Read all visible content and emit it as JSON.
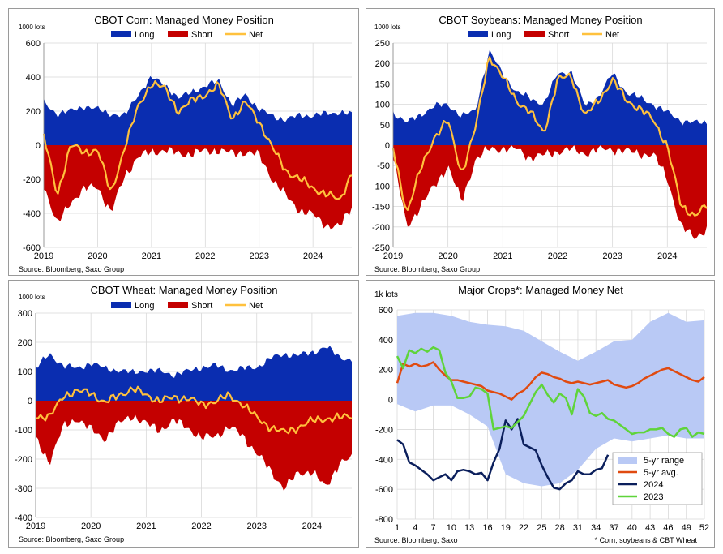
{
  "colors": {
    "long": "#0a2db0",
    "short": "#c40000",
    "net": "#ffc13d",
    "range": "#b9c9f5",
    "avg": "#e04a10",
    "y2024": "#0b1f5c",
    "y2023": "#5fd43a"
  },
  "source": "Source: Bloomberg, Saxo Group",
  "source_small": "Source: Bloomberg, Saxo",
  "footnote": "* Corn, soybeans & CBT Wheat",
  "chart_data": [
    {
      "type": "area",
      "title": "CBOT  Corn: Managed Money Position",
      "ylabel": "1000 lots",
      "ylim": [
        -600,
        600
      ],
      "yticks": [
        600,
        400,
        200,
        0,
        -200,
        -400,
        -600
      ],
      "xlim": [
        2019,
        2024.72
      ],
      "xticks": [
        "2019",
        "2020",
        "2021",
        "2022",
        "2023",
        "2024"
      ],
      "legend": [
        "Long",
        "Short",
        "Net"
      ],
      "legend_position": "top",
      "grid": true,
      "series": [
        {
          "name": "Long",
          "x": [
            2019.0,
            2019.25,
            2019.5,
            2019.75,
            2020.0,
            2020.25,
            2020.5,
            2020.75,
            2021.0,
            2021.25,
            2021.5,
            2021.75,
            2022.0,
            2022.25,
            2022.5,
            2022.75,
            2023.0,
            2023.25,
            2023.5,
            2023.75,
            2024.0,
            2024.25,
            2024.5,
            2024.72
          ],
          "values": [
            250,
            185,
            200,
            230,
            210,
            185,
            170,
            300,
            395,
            360,
            270,
            320,
            340,
            385,
            230,
            300,
            210,
            170,
            150,
            175,
            175,
            185,
            195,
            180
          ]
        },
        {
          "name": "Short",
          "x": [
            2019.0,
            2019.25,
            2019.5,
            2019.75,
            2020.0,
            2020.25,
            2020.5,
            2020.75,
            2021.0,
            2021.25,
            2021.5,
            2021.75,
            2022.0,
            2022.25,
            2022.5,
            2022.75,
            2023.0,
            2023.25,
            2023.5,
            2023.75,
            2024.0,
            2024.25,
            2024.5,
            2024.72
          ],
          "values": [
            -230,
            -470,
            -330,
            -260,
            -240,
            -400,
            -180,
            -70,
            -40,
            -30,
            -50,
            -50,
            -35,
            -30,
            -50,
            -40,
            -60,
            -200,
            -300,
            -380,
            -410,
            -470,
            -480,
            -360
          ]
        },
        {
          "name": "Net",
          "x": [
            2019.0,
            2019.25,
            2019.5,
            2019.75,
            2020.0,
            2020.25,
            2020.5,
            2020.75,
            2021.0,
            2021.25,
            2021.5,
            2021.75,
            2022.0,
            2022.25,
            2022.5,
            2022.75,
            2023.0,
            2023.25,
            2023.5,
            2023.75,
            2024.0,
            2024.25,
            2024.5,
            2024.72
          ],
          "values": [
            60,
            -300,
            10,
            -50,
            -20,
            -290,
            -10,
            220,
            370,
            330,
            200,
            260,
            300,
            350,
            160,
            250,
            140,
            -20,
            -150,
            -200,
            -250,
            -290,
            -320,
            -160
          ]
        }
      ]
    },
    {
      "type": "area",
      "title": "CBOT  Soybeans: Managed Money Position",
      "ylabel": "1000 lots",
      "ylim": [
        -250,
        250
      ],
      "yticks": [
        250,
        200,
        150,
        100,
        50,
        0,
        -50,
        -100,
        -150,
        -200,
        -250
      ],
      "xlim": [
        2019,
        2024.72
      ],
      "xticks": [
        "2019",
        "2020",
        "2021",
        "2022",
        "2023",
        "2024"
      ],
      "legend": [
        "Long",
        "Short",
        "Net"
      ],
      "legend_position": "top",
      "grid": true,
      "series": [
        {
          "name": "Long",
          "x": [
            2019.0,
            2019.25,
            2019.5,
            2019.75,
            2020.0,
            2020.25,
            2020.5,
            2020.75,
            2021.0,
            2021.25,
            2021.5,
            2021.75,
            2022.0,
            2022.25,
            2022.5,
            2022.75,
            2023.0,
            2023.25,
            2023.5,
            2023.75,
            2024.0,
            2024.25,
            2024.5,
            2024.72
          ],
          "values": [
            80,
            55,
            75,
            95,
            100,
            70,
            85,
            230,
            175,
            130,
            115,
            100,
            175,
            180,
            95,
            120,
            175,
            130,
            115,
            100,
            80,
            60,
            55,
            55
          ]
        },
        {
          "name": "Short",
          "x": [
            2019.0,
            2019.25,
            2019.5,
            2019.75,
            2020.0,
            2020.25,
            2020.5,
            2020.75,
            2021.0,
            2021.25,
            2021.5,
            2021.75,
            2022.0,
            2022.25,
            2022.5,
            2022.75,
            2023.0,
            2023.25,
            2023.5,
            2023.75,
            2024.0,
            2024.25,
            2024.5,
            2024.72
          ],
          "values": [
            -30,
            -200,
            -150,
            -100,
            -50,
            -140,
            -35,
            -10,
            -8,
            -10,
            -30,
            -25,
            -15,
            -10,
            -20,
            -10,
            -10,
            -15,
            -20,
            -25,
            -80,
            -200,
            -225,
            -205
          ]
        },
        {
          "name": "Net",
          "x": [
            2019.0,
            2019.25,
            2019.5,
            2019.75,
            2020.0,
            2020.25,
            2020.5,
            2020.75,
            2021.0,
            2021.25,
            2021.5,
            2021.75,
            2022.0,
            2022.25,
            2022.5,
            2022.75,
            2023.0,
            2023.25,
            2023.5,
            2023.75,
            2024.0,
            2024.25,
            2024.5,
            2024.72
          ],
          "values": [
            -10,
            -165,
            -60,
            20,
            60,
            -70,
            40,
            220,
            165,
            110,
            80,
            30,
            160,
            170,
            70,
            110,
            160,
            110,
            90,
            60,
            0,
            -150,
            -170,
            -150
          ]
        }
      ]
    },
    {
      "type": "area",
      "title": "CBOT  Wheat: Managed Money Position",
      "ylabel": "1000 lots",
      "ylim": [
        -400,
        300
      ],
      "yticks": [
        300,
        200,
        100,
        0,
        -100,
        -200,
        -300,
        -400
      ],
      "xlim": [
        2019,
        2024.72
      ],
      "xticks": [
        "2019",
        "2020",
        "2021",
        "2022",
        "2023",
        "2024"
      ],
      "legend": [
        "Long",
        "Short",
        "Net"
      ],
      "legend_position": "top",
      "grid": true,
      "series": [
        {
          "name": "Long",
          "x": [
            2019.0,
            2019.25,
            2019.5,
            2019.75,
            2020.0,
            2020.25,
            2020.5,
            2020.75,
            2021.0,
            2021.25,
            2021.5,
            2021.75,
            2022.0,
            2022.25,
            2022.5,
            2022.75,
            2023.0,
            2023.25,
            2023.5,
            2023.75,
            2024.0,
            2024.25,
            2024.5,
            2024.72
          ],
          "values": [
            110,
            160,
            120,
            110,
            130,
            110,
            105,
            95,
            105,
            100,
            90,
            100,
            115,
            120,
            105,
            110,
            115,
            145,
            160,
            155,
            165,
            185,
            150,
            140
          ]
        },
        {
          "name": "Short",
          "x": [
            2019.0,
            2019.25,
            2019.5,
            2019.75,
            2020.0,
            2020.25,
            2020.5,
            2020.75,
            2021.0,
            2021.25,
            2021.5,
            2021.75,
            2022.0,
            2022.25,
            2022.5,
            2022.75,
            2023.0,
            2023.25,
            2023.5,
            2023.75,
            2024.0,
            2024.25,
            2024.5,
            2024.72
          ],
          "values": [
            -130,
            -210,
            -90,
            -60,
            -100,
            -130,
            -80,
            -50,
            -80,
            -100,
            -70,
            -90,
            -130,
            -120,
            -90,
            -120,
            -180,
            -240,
            -300,
            -250,
            -240,
            -300,
            -210,
            -200
          ]
        },
        {
          "name": "Net",
          "x": [
            2019.0,
            2019.25,
            2019.5,
            2019.75,
            2020.0,
            2020.25,
            2020.5,
            2020.75,
            2021.0,
            2021.25,
            2021.5,
            2021.75,
            2022.0,
            2022.25,
            2022.5,
            2022.75,
            2023.0,
            2023.25,
            2023.5,
            2023.75,
            2024.0,
            2024.25,
            2024.5,
            2024.72
          ],
          "values": [
            -50,
            -60,
            20,
            30,
            30,
            -10,
            20,
            40,
            20,
            0,
            10,
            10,
            -15,
            0,
            15,
            -10,
            -60,
            -90,
            -110,
            -90,
            -70,
            -60,
            -60,
            -50
          ]
        }
      ]
    },
    {
      "type": "line",
      "title": "Major Crops*: Managed Money Net",
      "ylabel": "1k lots",
      "xlabel": "",
      "ylim": [
        -800,
        600
      ],
      "yticks": [
        600,
        400,
        200,
        0,
        -200,
        -400,
        -600,
        -800
      ],
      "xlim": [
        1,
        52
      ],
      "xticks": [
        1,
        4,
        7,
        10,
        13,
        16,
        19,
        22,
        25,
        28,
        31,
        34,
        37,
        40,
        43,
        46,
        49,
        52
      ],
      "legend": [
        "5-yr range",
        "5-yr avg.",
        "2024",
        "2023"
      ],
      "legend_position": "bottom-right",
      "grid": true,
      "range": {
        "name": "5-yr range",
        "x": [
          1,
          4,
          7,
          10,
          13,
          16,
          19,
          22,
          25,
          28,
          31,
          34,
          37,
          40,
          43,
          46,
          49,
          52
        ],
        "low": [
          -30,
          -80,
          -40,
          -40,
          -100,
          -180,
          -500,
          -560,
          -580,
          -560,
          -470,
          -330,
          -260,
          -280,
          -260,
          -240,
          -260,
          -260
        ],
        "high": [
          560,
          580,
          580,
          560,
          520,
          500,
          490,
          460,
          390,
          320,
          260,
          320,
          390,
          400,
          520,
          580,
          520,
          530
        ]
      },
      "series": [
        {
          "name": "5-yr avg.",
          "x": [
            1,
            2,
            3,
            4,
            5,
            6,
            7,
            8,
            9,
            10,
            11,
            12,
            13,
            14,
            15,
            16,
            17,
            18,
            19,
            20,
            21,
            22,
            23,
            24,
            25,
            26,
            27,
            28,
            29,
            30,
            31,
            32,
            33,
            34,
            35,
            36,
            37,
            38,
            39,
            40,
            41,
            42,
            43,
            44,
            45,
            46,
            47,
            48,
            49,
            50,
            51,
            52
          ],
          "values": [
            110,
            240,
            220,
            240,
            220,
            230,
            250,
            200,
            160,
            130,
            130,
            120,
            110,
            100,
            90,
            60,
            50,
            40,
            20,
            0,
            40,
            60,
            100,
            150,
            180,
            170,
            150,
            140,
            120,
            110,
            120,
            110,
            100,
            110,
            120,
            130,
            100,
            90,
            80,
            90,
            110,
            140,
            160,
            180,
            200,
            210,
            190,
            170,
            150,
            130,
            120,
            150
          ]
        },
        {
          "name": "2024",
          "x": [
            1,
            2,
            3,
            4,
            5,
            6,
            7,
            8,
            9,
            10,
            11,
            12,
            13,
            14,
            15,
            16,
            17,
            18,
            19,
            20,
            21,
            22,
            23,
            24,
            25,
            26,
            27,
            28,
            29,
            30,
            31,
            32,
            33,
            34,
            35,
            36
          ],
          "values": [
            -270,
            -300,
            -420,
            -440,
            -470,
            -500,
            -540,
            -520,
            -500,
            -540,
            -480,
            -470,
            -480,
            -500,
            -490,
            -540,
            -420,
            -330,
            -140,
            -200,
            -130,
            -300,
            -320,
            -340,
            -440,
            -520,
            -590,
            -600,
            -560,
            -540,
            -480,
            -500,
            -500,
            -470,
            -460,
            -370
          ]
        },
        {
          "name": "2023",
          "x": [
            1,
            2,
            3,
            4,
            5,
            6,
            7,
            8,
            9,
            10,
            11,
            12,
            13,
            14,
            15,
            16,
            17,
            18,
            19,
            20,
            21,
            22,
            23,
            24,
            25,
            26,
            27,
            28,
            29,
            30,
            31,
            32,
            33,
            34,
            35,
            36,
            37,
            38,
            39,
            40,
            41,
            42,
            43,
            44,
            45,
            46,
            47,
            48,
            49,
            50,
            51,
            52
          ],
          "values": [
            290,
            210,
            330,
            310,
            340,
            320,
            350,
            330,
            180,
            120,
            10,
            10,
            20,
            80,
            70,
            40,
            -200,
            -190,
            -180,
            -190,
            -150,
            -110,
            -30,
            50,
            100,
            30,
            -20,
            40,
            10,
            -100,
            70,
            20,
            -90,
            -110,
            -90,
            -130,
            -140,
            -170,
            -200,
            -230,
            -220,
            -220,
            -200,
            -200,
            -190,
            -230,
            -250,
            -200,
            -190,
            -250,
            -220,
            -230
          ]
        }
      ]
    }
  ]
}
